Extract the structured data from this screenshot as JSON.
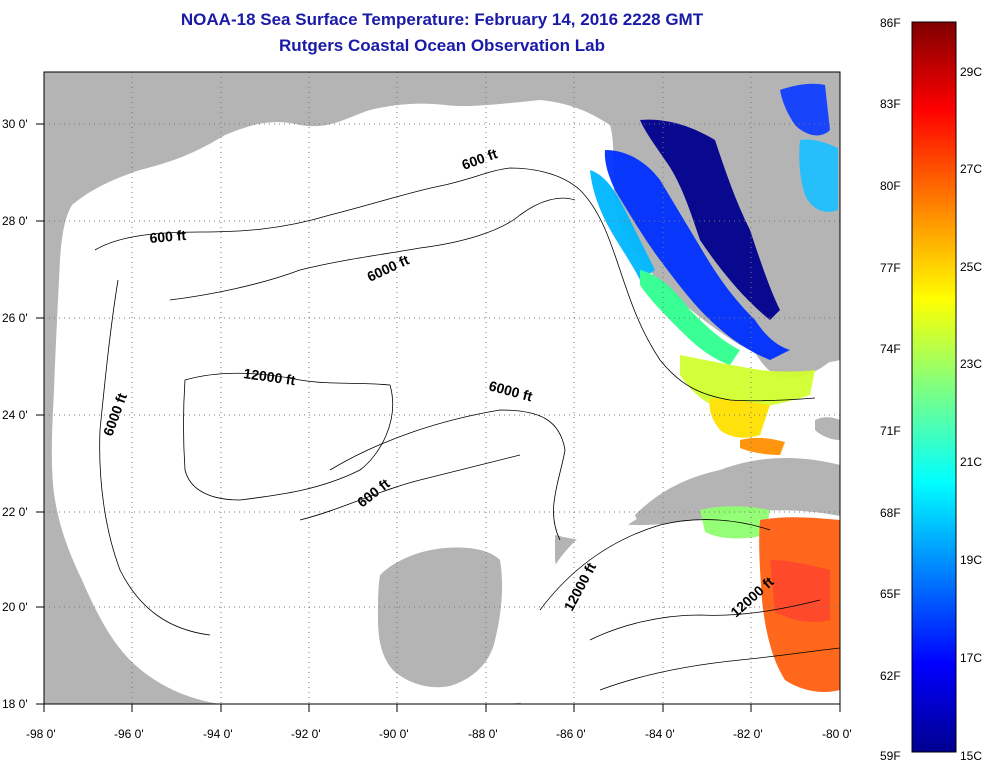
{
  "header": {
    "title": "NOAA-18 Sea Surface Temperature:  February 14, 2016 2228 GMT",
    "subtitle": "Rutgers Coastal Ocean Observation Lab"
  },
  "map": {
    "lon_ticks": [
      "-98 0'",
      "-96 0'",
      "-94 0'",
      "-92 0'",
      "-90 0'",
      "-88 0'",
      "-86 0'",
      "-84 0'",
      "-82 0'",
      "-80 0'"
    ],
    "lat_ticks": [
      "30 0'",
      "28 0'",
      "26 0'",
      "24 0'",
      "22 0'",
      "20 0'",
      "18 0'"
    ],
    "lon_range": [
      -98,
      -80
    ],
    "lat_range": [
      18,
      31
    ],
    "contour_labels": [
      "600 ft",
      "600 ft",
      "6000 ft",
      "6000 ft",
      "12000 ft",
      "6000 ft",
      "600 ft",
      "12000 ft",
      "12000 ft"
    ],
    "land_color": "#b4b4b4",
    "water_color": "#ffffff"
  },
  "colorbar": {
    "f_labels": [
      "86F",
      "83F",
      "80F",
      "77F",
      "74F",
      "71F",
      "68F",
      "65F",
      "62F",
      "59F"
    ],
    "c_labels": [
      "29C",
      "27C",
      "25C",
      "23C",
      "21C",
      "19C",
      "17C",
      "15C"
    ],
    "colors": [
      "#800000",
      "#ff0000",
      "#ff8000",
      "#ffff00",
      "#80ff80",
      "#00ffff",
      "#0080ff",
      "#0000ff",
      "#00008f"
    ]
  }
}
